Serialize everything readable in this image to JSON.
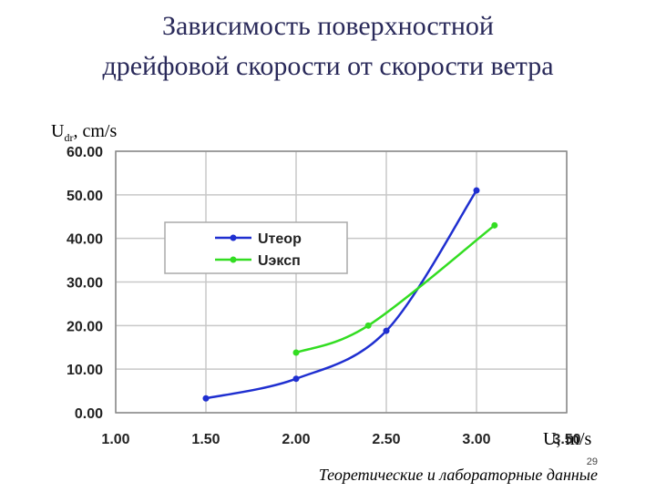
{
  "chart_data": {
    "type": "line",
    "title": [
      "Зависимость поверхностной",
      "дрейфовой скорости от скорости ветра"
    ],
    "ylabel": {
      "main": "U",
      "sub": "dr",
      "unit": ", cm/s"
    },
    "xlabel": "U, m/s",
    "footer": "Теоретические и лабораторные данные",
    "page_number": "29",
    "xlim": [
      1.0,
      3.5
    ],
    "xticks": [
      {
        "value": 1,
        "label": "1.00"
      },
      {
        "value": 1.5,
        "label": "1.50"
      },
      {
        "value": 2,
        "label": "2.00"
      },
      {
        "value": 2.5,
        "label": "2.50"
      },
      {
        "value": 3,
        "label": "3.00"
      },
      {
        "value": 3.5,
        "label": "3.50"
      }
    ],
    "ylim": [
      0,
      60
    ],
    "yticks": [
      {
        "value": 0,
        "label": "0.00"
      },
      {
        "value": 10,
        "label": "10.00"
      },
      {
        "value": 20,
        "label": "20.00"
      },
      {
        "value": 30,
        "label": "30.00"
      },
      {
        "value": 40,
        "label": "40.00"
      },
      {
        "value": 50,
        "label": "50.00"
      },
      {
        "value": 60,
        "label": "60.00"
      }
    ],
    "grid": true,
    "legend": "upper-left",
    "series": [
      {
        "name": "Uтеор",
        "color": "#1f2fd0",
        "x": [
          1.5,
          2.0,
          2.5,
          3.0
        ],
        "values": [
          3.3,
          7.8,
          18.8,
          51
        ]
      },
      {
        "name": "Uэксп",
        "color": "#33dd22",
        "x": [
          2.0,
          2.4,
          3.1
        ],
        "values": [
          13.8,
          20,
          43
        ]
      }
    ]
  }
}
